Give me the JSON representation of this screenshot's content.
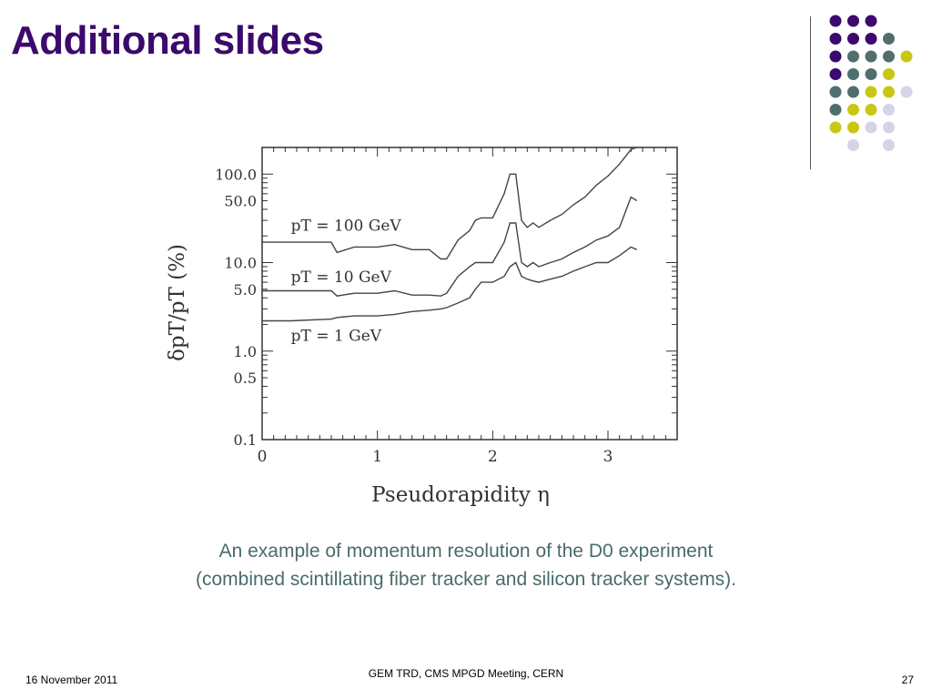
{
  "slide": {
    "title": "Additional slides",
    "caption_line1": "An example of momentum resolution of the D0 experiment",
    "caption_line2": "(combined scintillating fiber tracker and silicon tracker systems).",
    "footer_date": "16 November 2011",
    "footer_center": "GEM TRD,  CMS MPGD Meeting, CERN",
    "page_number": "27"
  },
  "colors": {
    "title": "#3b0a6b",
    "caption": "#4a6b6b",
    "dot_purple": "#3b0a6b",
    "dot_teal": "#4f6f6f",
    "dot_yellow": "#c8c814",
    "dot_lavender": "#d4d4e8"
  },
  "chart_data": {
    "type": "line",
    "xlabel": "Pseudorapidity η",
    "ylabel": "δpT/pT (%)",
    "xlim": [
      0,
      3.6
    ],
    "ylim": [
      0.1,
      200
    ],
    "y_scale": "log",
    "x_ticks": [
      "0",
      "1",
      "2",
      "3"
    ],
    "y_ticks": [
      "0.1",
      "0.5",
      "1.0",
      "5.0",
      "10.0",
      "50.0",
      "100.0"
    ],
    "series": [
      {
        "name": "pT = 100 GeV",
        "x": [
          0,
          0.25,
          0.6,
          0.65,
          0.8,
          1.0,
          1.15,
          1.3,
          1.45,
          1.55,
          1.6,
          1.7,
          1.8,
          1.85,
          1.9,
          2.0,
          2.1,
          2.15,
          2.2,
          2.25,
          2.3,
          2.35,
          2.4,
          2.5,
          2.6,
          2.7,
          2.8,
          2.9,
          3.0,
          3.1,
          3.2,
          3.25
        ],
        "values": [
          17,
          17,
          17,
          13,
          15,
          15,
          16,
          14,
          14,
          11,
          11,
          18,
          23,
          30,
          32,
          32,
          60,
          100,
          100,
          30,
          25,
          28,
          25,
          30,
          35,
          45,
          55,
          75,
          95,
          130,
          190,
          200
        ]
      },
      {
        "name": "pT = 10 GeV",
        "x": [
          0,
          0.25,
          0.6,
          0.65,
          0.8,
          1.0,
          1.15,
          1.3,
          1.45,
          1.55,
          1.6,
          1.7,
          1.8,
          1.85,
          1.9,
          2.0,
          2.1,
          2.15,
          2.2,
          2.25,
          2.3,
          2.35,
          2.4,
          2.5,
          2.6,
          2.7,
          2.8,
          2.9,
          3.0,
          3.1,
          3.2,
          3.25
        ],
        "values": [
          4.8,
          4.8,
          4.8,
          4.2,
          4.5,
          4.5,
          4.8,
          4.3,
          4.3,
          4.2,
          4.5,
          7,
          9,
          10,
          10,
          10,
          17,
          28,
          28,
          10,
          9,
          10,
          9,
          10,
          11,
          13,
          15,
          18,
          20,
          25,
          55,
          50
        ]
      },
      {
        "name": "pT = 1 GeV",
        "x": [
          0,
          0.25,
          0.6,
          0.65,
          0.8,
          1.0,
          1.15,
          1.3,
          1.45,
          1.55,
          1.6,
          1.7,
          1.8,
          1.85,
          1.9,
          2.0,
          2.1,
          2.15,
          2.2,
          2.25,
          2.3,
          2.35,
          2.4,
          2.5,
          2.6,
          2.7,
          2.8,
          2.9,
          3.0,
          3.1,
          3.2,
          3.25
        ],
        "values": [
          2.2,
          2.2,
          2.3,
          2.4,
          2.5,
          2.5,
          2.6,
          2.8,
          2.9,
          3,
          3.1,
          3.5,
          4,
          5,
          6,
          6,
          7,
          9,
          10,
          7,
          6.5,
          6.2,
          6,
          6.5,
          7,
          8,
          9,
          10,
          10,
          12,
          15,
          14
        ]
      }
    ]
  }
}
